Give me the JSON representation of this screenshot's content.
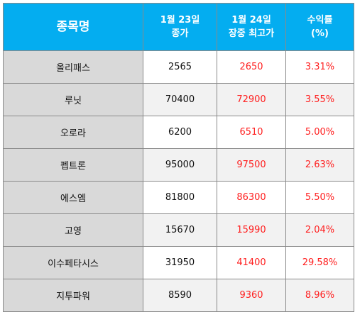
{
  "header": {
    "name": "종목명",
    "close_line1": "1월 23일",
    "close_line2": "종가",
    "high_line1": "1월 24일",
    "high_line2": "장중 최고가",
    "return_line1": "수익률",
    "return_line2": "(%)"
  },
  "rows": [
    {
      "name": "올리패스",
      "close": "2565",
      "high": "2650",
      "return": "3.31%"
    },
    {
      "name": "루닛",
      "close": "70400",
      "high": "72900",
      "return": "3.55%"
    },
    {
      "name": "오로라",
      "close": "6200",
      "high": "6510",
      "return": "5.00%"
    },
    {
      "name": "펩트론",
      "close": "95000",
      "high": "97500",
      "return": "2.63%"
    },
    {
      "name": "에스엠",
      "close": "81800",
      "high": "86300",
      "return": "5.50%"
    },
    {
      "name": "고영",
      "close": "15670",
      "high": "15990",
      "return": "2.04%"
    },
    {
      "name": "이수페타시스",
      "close": "31950",
      "high": "41400",
      "return": "29.58%"
    },
    {
      "name": "지투파워",
      "close": "8590",
      "high": "9360",
      "return": "8.96%"
    }
  ],
  "colors": {
    "header_bg": "#04adf0",
    "name_bg": "#d9d9d9",
    "highlight_text": "#ff1f1f"
  }
}
